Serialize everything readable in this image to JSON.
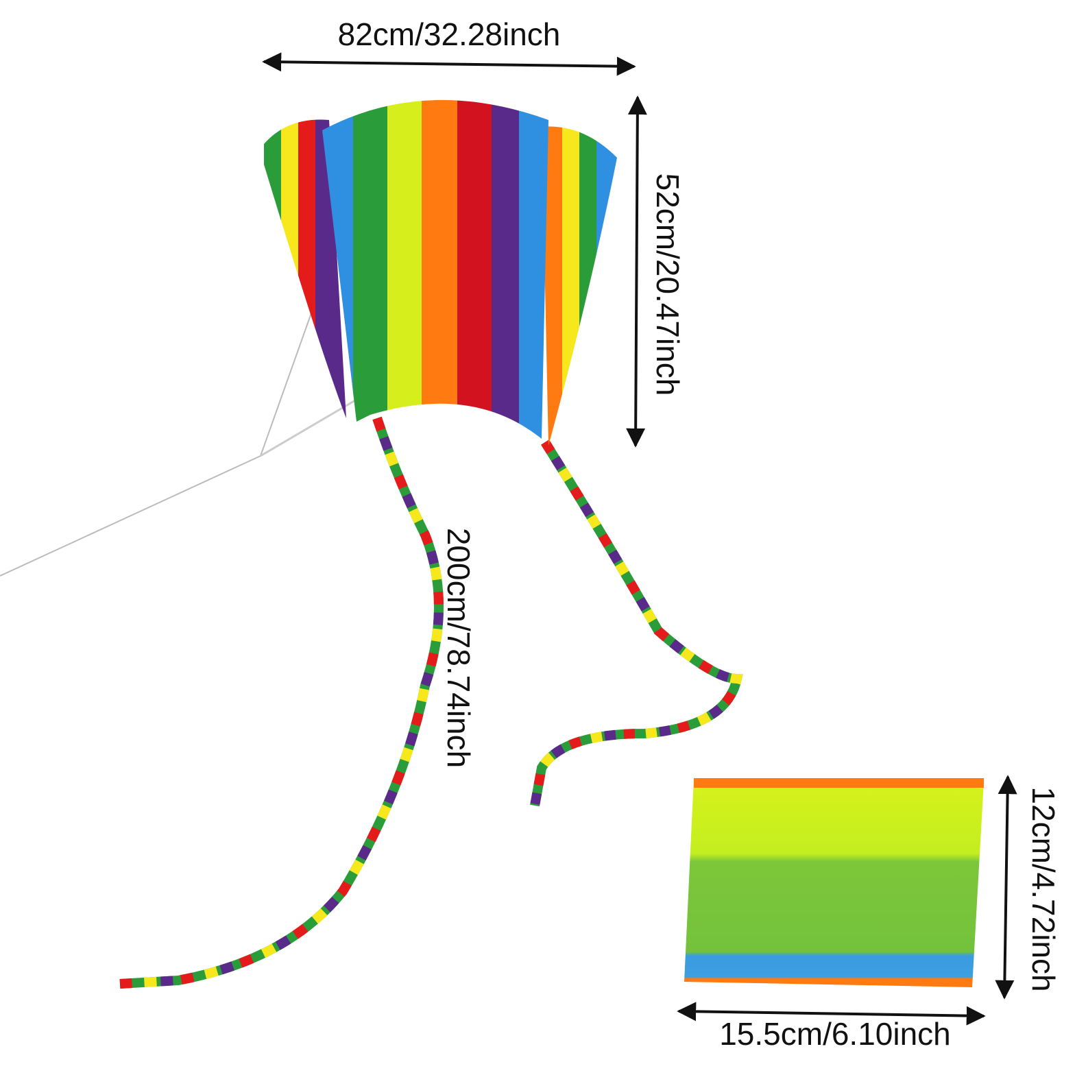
{
  "kite": {
    "width_label": "82cm/32.28inch",
    "height_label": "52cm/20.47inch",
    "tail_label": "200cm/78.74inch"
  },
  "pouch": {
    "height_label": "12cm/4.72inch",
    "width_label": "15.5cm/6.10inch"
  }
}
